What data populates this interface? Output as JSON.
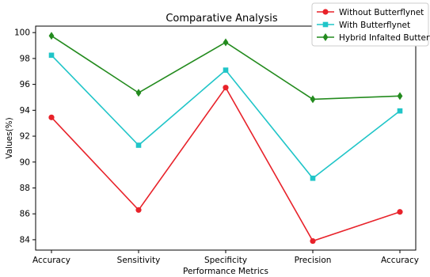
{
  "chart_data": {
    "type": "line",
    "title": "Comparative Analysis",
    "xlabel": "Performance Metrics",
    "ylabel": "Values(%)",
    "categories": [
      "Accuracy",
      "Sensitivity",
      "Specificity",
      "Precision",
      "Accuracy"
    ],
    "ylim": [
      83.2,
      100.5
    ],
    "yticks": [
      84,
      86,
      88,
      90,
      92,
      94,
      96,
      98,
      100
    ],
    "grid": false,
    "legend_position": "top-right",
    "series": [
      {
        "name": "Without Butterflynet",
        "color": "#e8222a",
        "marker": "circle",
        "values": [
          93.45,
          86.3,
          95.75,
          83.9,
          86.15
        ]
      },
      {
        "name": "With Butterflynet",
        "color": "#20c5c8",
        "marker": "square",
        "values": [
          98.25,
          91.3,
          97.1,
          88.75,
          93.95
        ]
      },
      {
        "name": "Hybrid Infalted Butterflynet",
        "color": "#238b1e",
        "marker": "diamond",
        "values": [
          99.75,
          95.35,
          99.25,
          94.85,
          95.1
        ]
      }
    ]
  }
}
